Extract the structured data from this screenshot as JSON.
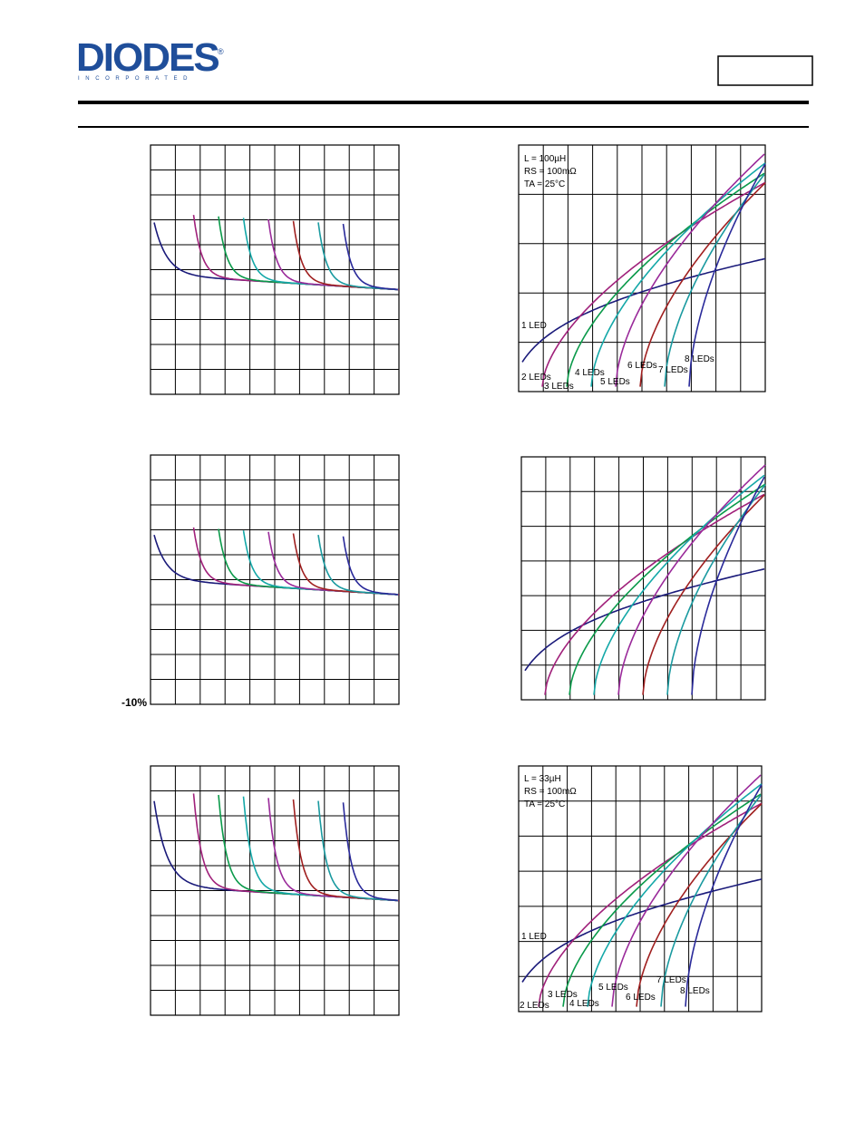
{
  "header": {
    "logo": "DIODES",
    "logo_sub": "INCORPORATED",
    "logo_mark": "®"
  },
  "left_axis_label": "-10%",
  "charts": [
    {
      "notes": [
        "L = 100µH",
        "RS = 100mΩ",
        "TA = 25°C"
      ],
      "labels": [
        "1 LED",
        "2 LEDs",
        "3 LEDs",
        "4 LEDs",
        "5 LEDs",
        "6 LEDs",
        "7 LEDs",
        "8 LEDs"
      ]
    },
    {
      "notes": [
        "L = 33µH",
        "RS = 100mΩ",
        "TA = 25°C"
      ],
      "labels": [
        "1 LED",
        "2 LEDs",
        "3 LEDs",
        "4 LEDs",
        "5 LEDs",
        "6 LEDs",
        "7 LEDs",
        "8 LEDs"
      ]
    }
  ]
}
